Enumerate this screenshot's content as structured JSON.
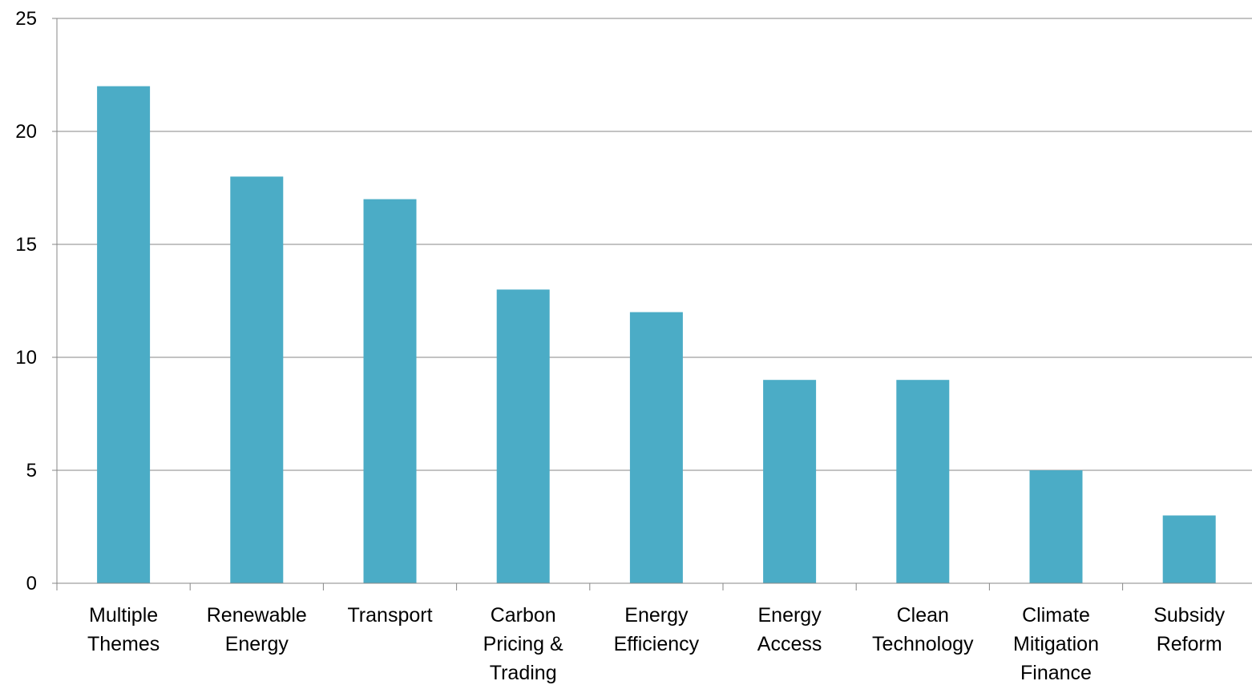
{
  "chart_data": {
    "type": "bar",
    "categories": [
      [
        "Multiple",
        "Themes"
      ],
      [
        "Renewable",
        "Energy"
      ],
      [
        "Transport"
      ],
      [
        "Carbon",
        "Pricing &",
        "Trading"
      ],
      [
        "Energy",
        "Efficiency"
      ],
      [
        "Energy",
        "Access"
      ],
      [
        "Clean",
        "Technology"
      ],
      [
        "Climate",
        "Mitigation",
        "Finance"
      ],
      [
        "Subsidy",
        "Reform"
      ]
    ],
    "values": [
      22,
      18,
      17,
      13,
      12,
      9,
      9,
      5,
      3
    ],
    "ylim": [
      0,
      25
    ],
    "yticks": [
      0,
      5,
      10,
      15,
      20,
      25
    ],
    "grid": true,
    "bar_color": "#4bacc6",
    "grid_color": "#878787",
    "axis_color": "#878787"
  }
}
